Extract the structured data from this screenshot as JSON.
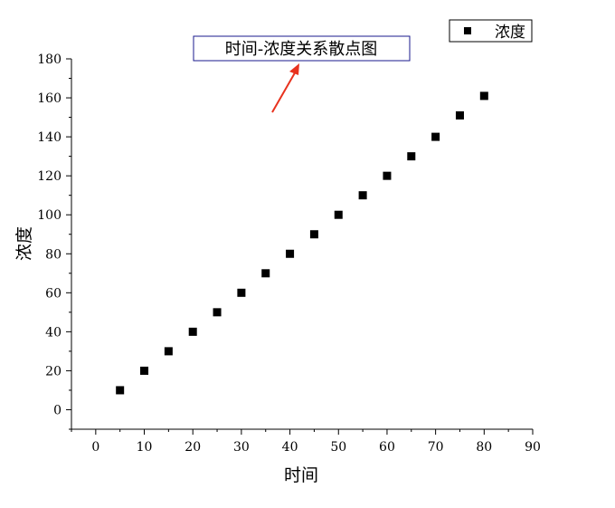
{
  "chart_data": {
    "type": "scatter",
    "title": "",
    "xlabel": "时间",
    "ylabel": "浓度",
    "xlim": [
      -5,
      90
    ],
    "ylim": [
      -10,
      180
    ],
    "xticks": [
      0,
      10,
      20,
      30,
      40,
      50,
      60,
      70,
      80,
      90
    ],
    "yticks": [
      0,
      20,
      40,
      60,
      80,
      100,
      120,
      140,
      160,
      180
    ],
    "grid": false,
    "legend_position": "top-right",
    "series": [
      {
        "name": "浓度",
        "marker": "square",
        "color": "#000000",
        "x": [
          5,
          10,
          15,
          20,
          25,
          30,
          35,
          40,
          45,
          50,
          55,
          60,
          65,
          70,
          75,
          80
        ],
        "y": [
          10,
          20,
          30,
          40,
          50,
          60,
          70,
          80,
          90,
          100,
          110,
          120,
          130,
          140,
          151,
          161
        ]
      }
    ],
    "annotations": [
      {
        "text": "时间-浓度关系散点图",
        "border_color": "#1a1a8c",
        "arrow_color": "#e8321e"
      }
    ]
  }
}
